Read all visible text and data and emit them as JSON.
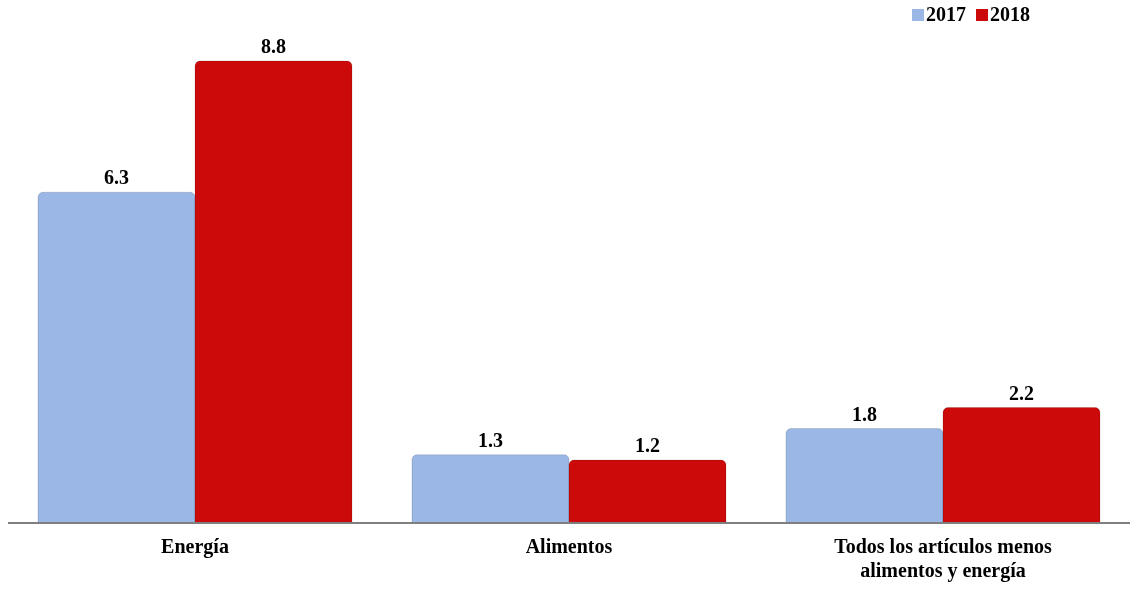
{
  "chart_data": {
    "type": "bar",
    "categories": [
      "Energía",
      "Alimentos",
      "Todos los artículos menos alimentos y energía"
    ],
    "series": [
      {
        "name": "2017",
        "color": "#9bb7e6",
        "values": [
          6.3,
          1.3,
          1.8
        ]
      },
      {
        "name": "2018",
        "color": "#cc0a0a",
        "values": [
          8.8,
          1.2,
          2.2
        ]
      }
    ],
    "data_labels": true,
    "legend": "top right",
    "grid": false
  }
}
